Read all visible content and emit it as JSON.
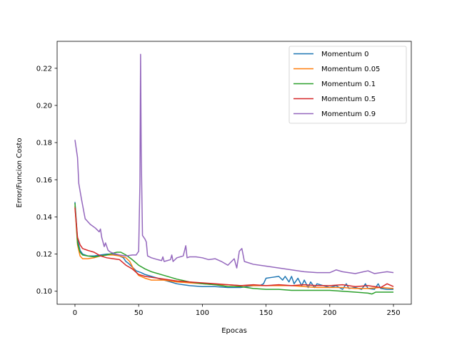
{
  "chart_data": {
    "type": "line",
    "title": "",
    "xlabel": "Epocas",
    "ylabel": "Error/Funcion Costo",
    "xlim": [
      -14,
      264
    ],
    "ylim": [
      0.093,
      0.2345
    ],
    "x_ticks": [
      0,
      50,
      100,
      150,
      200,
      250
    ],
    "y_ticks": [
      0.1,
      0.12,
      0.14,
      0.16,
      0.18,
      0.2,
      0.22
    ],
    "y_tick_labels": [
      "0.10",
      "0.12",
      "0.14",
      "0.16",
      "0.18",
      "0.20",
      "0.22"
    ],
    "grid": false,
    "legend_position": "top-right",
    "series": [
      {
        "name": "Momentum 0",
        "color": "#1f77b4",
        "points": [
          [
            0,
            0.148
          ],
          [
            2,
            0.128
          ],
          [
            4,
            0.122
          ],
          [
            6,
            0.12
          ],
          [
            10,
            0.119
          ],
          [
            15,
            0.119
          ],
          [
            20,
            0.1195
          ],
          [
            25,
            0.12
          ],
          [
            30,
            0.12
          ],
          [
            35,
            0.119
          ],
          [
            38,
            0.118
          ],
          [
            40,
            0.116
          ],
          [
            42,
            0.115
          ],
          [
            45,
            0.113
          ],
          [
            48,
            0.111
          ],
          [
            52,
            0.11
          ],
          [
            55,
            0.109
          ],
          [
            60,
            0.108
          ],
          [
            70,
            0.106
          ],
          [
            80,
            0.104
          ],
          [
            90,
            0.103
          ],
          [
            100,
            0.1025
          ],
          [
            110,
            0.1025
          ],
          [
            120,
            0.102
          ],
          [
            130,
            0.102
          ],
          [
            140,
            0.103
          ],
          [
            145,
            0.103
          ],
          [
            148,
            0.104
          ],
          [
            150,
            0.107
          ],
          [
            155,
            0.1075
          ],
          [
            160,
            0.108
          ],
          [
            163,
            0.106
          ],
          [
            165,
            0.108
          ],
          [
            168,
            0.105
          ],
          [
            170,
            0.108
          ],
          [
            172,
            0.104
          ],
          [
            175,
            0.107
          ],
          [
            178,
            0.103
          ],
          [
            180,
            0.106
          ],
          [
            183,
            0.102
          ],
          [
            185,
            0.105
          ],
          [
            188,
            0.102
          ],
          [
            190,
            0.104
          ],
          [
            195,
            0.103
          ],
          [
            200,
            0.102
          ],
          [
            205,
            0.103
          ],
          [
            210,
            0.101
          ],
          [
            213,
            0.104
          ],
          [
            215,
            0.1015
          ],
          [
            220,
            0.102
          ],
          [
            225,
            0.101
          ],
          [
            228,
            0.104
          ],
          [
            230,
            0.1015
          ],
          [
            235,
            0.101
          ],
          [
            238,
            0.104
          ],
          [
            240,
            0.1015
          ],
          [
            245,
            0.101
          ],
          [
            250,
            0.101
          ]
        ]
      },
      {
        "name": "Momentum 0.05",
        "color": "#ff7f0e",
        "points": [
          [
            0,
            0.146
          ],
          [
            2,
            0.125
          ],
          [
            4,
            0.119
          ],
          [
            6,
            0.1175
          ],
          [
            10,
            0.1175
          ],
          [
            15,
            0.118
          ],
          [
            20,
            0.119
          ],
          [
            25,
            0.1195
          ],
          [
            30,
            0.1195
          ],
          [
            35,
            0.119
          ],
          [
            40,
            0.118
          ],
          [
            43,
            0.116
          ],
          [
            46,
            0.112
          ],
          [
            50,
            0.1085
          ],
          [
            55,
            0.107
          ],
          [
            60,
            0.106
          ],
          [
            70,
            0.106
          ],
          [
            80,
            0.105
          ],
          [
            90,
            0.1045
          ],
          [
            100,
            0.104
          ],
          [
            110,
            0.1035
          ],
          [
            120,
            0.1035
          ],
          [
            130,
            0.103
          ],
          [
            140,
            0.103
          ],
          [
            150,
            0.103
          ],
          [
            160,
            0.103
          ],
          [
            170,
            0.103
          ],
          [
            180,
            0.1025
          ],
          [
            190,
            0.102
          ],
          [
            200,
            0.102
          ],
          [
            210,
            0.102
          ],
          [
            220,
            0.1015
          ],
          [
            230,
            0.1015
          ],
          [
            240,
            0.102
          ],
          [
            250,
            0.1015
          ]
        ]
      },
      {
        "name": "Momentum 0.1",
        "color": "#2ca02c",
        "points": [
          [
            0,
            0.1475
          ],
          [
            2,
            0.126
          ],
          [
            4,
            0.121
          ],
          [
            6,
            0.1195
          ],
          [
            10,
            0.119
          ],
          [
            15,
            0.1185
          ],
          [
            20,
            0.119
          ],
          [
            25,
            0.1195
          ],
          [
            30,
            0.1205
          ],
          [
            33,
            0.121
          ],
          [
            36,
            0.121
          ],
          [
            40,
            0.1195
          ],
          [
            45,
            0.117
          ],
          [
            50,
            0.114
          ],
          [
            55,
            0.112
          ],
          [
            60,
            0.1105
          ],
          [
            70,
            0.1085
          ],
          [
            80,
            0.1065
          ],
          [
            90,
            0.105
          ],
          [
            100,
            0.104
          ],
          [
            110,
            0.1035
          ],
          [
            120,
            0.1025
          ],
          [
            130,
            0.1025
          ],
          [
            140,
            0.1015
          ],
          [
            150,
            0.101
          ],
          [
            160,
            0.101
          ],
          [
            170,
            0.1005
          ],
          [
            180,
            0.1005
          ],
          [
            190,
            0.1005
          ],
          [
            200,
            0.1005
          ],
          [
            210,
            0.1
          ],
          [
            220,
            0.0995
          ],
          [
            230,
            0.099
          ],
          [
            233,
            0.0985
          ],
          [
            236,
            0.0995
          ],
          [
            240,
            0.0995
          ],
          [
            250,
            0.0995
          ]
        ]
      },
      {
        "name": "Momentum 0.5",
        "color": "#d62728",
        "points": [
          [
            0,
            0.145
          ],
          [
            2,
            0.129
          ],
          [
            4,
            0.125
          ],
          [
            6,
            0.123
          ],
          [
            10,
            0.122
          ],
          [
            15,
            0.121
          ],
          [
            20,
            0.119
          ],
          [
            25,
            0.118
          ],
          [
            30,
            0.1175
          ],
          [
            35,
            0.117
          ],
          [
            40,
            0.114
          ],
          [
            45,
            0.112
          ],
          [
            50,
            0.109
          ],
          [
            55,
            0.108
          ],
          [
            60,
            0.1075
          ],
          [
            70,
            0.1065
          ],
          [
            80,
            0.1055
          ],
          [
            90,
            0.105
          ],
          [
            100,
            0.1045
          ],
          [
            110,
            0.104
          ],
          [
            120,
            0.1035
          ],
          [
            130,
            0.103
          ],
          [
            140,
            0.1035
          ],
          [
            150,
            0.103
          ],
          [
            160,
            0.1035
          ],
          [
            170,
            0.103
          ],
          [
            180,
            0.1035
          ],
          [
            190,
            0.103
          ],
          [
            200,
            0.103
          ],
          [
            210,
            0.1035
          ],
          [
            220,
            0.1025
          ],
          [
            230,
            0.103
          ],
          [
            240,
            0.102
          ],
          [
            245,
            0.104
          ],
          [
            250,
            0.1025
          ]
        ]
      },
      {
        "name": "Momentum 0.9",
        "color": "#9467bd",
        "points": [
          [
            0,
            0.1815
          ],
          [
            2,
            0.172
          ],
          [
            3,
            0.158
          ],
          [
            5,
            0.15
          ],
          [
            8,
            0.139
          ],
          [
            12,
            0.136
          ],
          [
            16,
            0.134
          ],
          [
            19,
            0.132
          ],
          [
            20,
            0.1335
          ],
          [
            21,
            0.129
          ],
          [
            23,
            0.124
          ],
          [
            24,
            0.126
          ],
          [
            26,
            0.122
          ],
          [
            28,
            0.121
          ],
          [
            30,
            0.1205
          ],
          [
            35,
            0.1195
          ],
          [
            40,
            0.119
          ],
          [
            45,
            0.1195
          ],
          [
            48,
            0.1195
          ],
          [
            50,
            0.1215
          ],
          [
            51,
            0.158
          ],
          [
            51.5,
            0.2275
          ],
          [
            52,
            0.175
          ],
          [
            53,
            0.13
          ],
          [
            55,
            0.128
          ],
          [
            56,
            0.1265
          ],
          [
            57,
            0.119
          ],
          [
            60,
            0.118
          ],
          [
            65,
            0.117
          ],
          [
            68,
            0.1165
          ],
          [
            69,
            0.1185
          ],
          [
            70,
            0.116
          ],
          [
            75,
            0.117
          ],
          [
            76,
            0.1195
          ],
          [
            77,
            0.116
          ],
          [
            80,
            0.118
          ],
          [
            85,
            0.119
          ],
          [
            87,
            0.1245
          ],
          [
            88,
            0.118
          ],
          [
            90,
            0.1185
          ],
          [
            95,
            0.1185
          ],
          [
            100,
            0.118
          ],
          [
            105,
            0.117
          ],
          [
            110,
            0.1175
          ],
          [
            115,
            0.116
          ],
          [
            120,
            0.114
          ],
          [
            125,
            0.1175
          ],
          [
            127,
            0.1125
          ],
          [
            129,
            0.1215
          ],
          [
            131,
            0.123
          ],
          [
            133,
            0.116
          ],
          [
            140,
            0.1145
          ],
          [
            150,
            0.1135
          ],
          [
            160,
            0.1125
          ],
          [
            170,
            0.1115
          ],
          [
            180,
            0.1105
          ],
          [
            190,
            0.11
          ],
          [
            200,
            0.11
          ],
          [
            205,
            0.1115
          ],
          [
            210,
            0.1105
          ],
          [
            220,
            0.1095
          ],
          [
            230,
            0.111
          ],
          [
            235,
            0.1095
          ],
          [
            240,
            0.11
          ],
          [
            245,
            0.1105
          ],
          [
            250,
            0.11
          ]
        ]
      }
    ]
  }
}
